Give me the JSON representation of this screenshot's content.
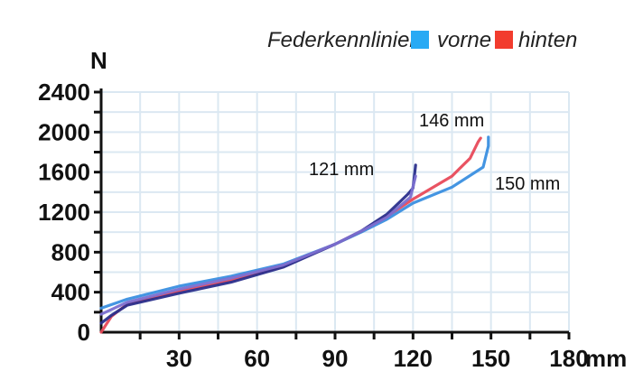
{
  "chart_data": {
    "type": "line",
    "legend": {
      "title": "Federkennlinien:",
      "placement": "top-right",
      "entries": [
        {
          "label": "vorne",
          "color": "#29aaf4"
        },
        {
          "label": "hinten",
          "color": "#f23c2e"
        }
      ]
    },
    "xlabel": "mm",
    "ylabel": "N",
    "xlim": [
      0,
      180
    ],
    "ylim": [
      0,
      2400
    ],
    "x_ticks": [
      30,
      60,
      90,
      120,
      150,
      180
    ],
    "y_ticks": [
      0,
      400,
      800,
      1200,
      1600,
      2000,
      2400
    ],
    "grid": true,
    "annotations": [
      "121 mm",
      "146 mm",
      "150 mm"
    ],
    "series": [
      {
        "color": "#3a8fe0",
        "points": [
          [
            0,
            240
          ],
          [
            10,
            330
          ],
          [
            30,
            460
          ],
          [
            50,
            560
          ],
          [
            70,
            680
          ],
          [
            90,
            880
          ],
          [
            100,
            1000
          ],
          [
            110,
            1130
          ],
          [
            120,
            1290
          ],
          [
            135,
            1450
          ],
          [
            147,
            1650
          ],
          [
            149,
            1860
          ],
          [
            149,
            1950
          ]
        ]
      },
      {
        "color": "#e84a5a",
        "points": [
          [
            0,
            0
          ],
          [
            4,
            160
          ],
          [
            10,
            280
          ],
          [
            30,
            410
          ],
          [
            50,
            520
          ],
          [
            70,
            660
          ],
          [
            90,
            880
          ],
          [
            100,
            1010
          ],
          [
            110,
            1160
          ],
          [
            120,
            1330
          ],
          [
            135,
            1560
          ],
          [
            142,
            1740
          ],
          [
            145,
            1900
          ],
          [
            146,
            1940
          ]
        ]
      },
      {
        "color": "#2a2f8c",
        "points": [
          [
            0,
            90
          ],
          [
            4,
            170
          ],
          [
            10,
            270
          ],
          [
            30,
            390
          ],
          [
            50,
            500
          ],
          [
            70,
            650
          ],
          [
            90,
            880
          ],
          [
            100,
            1010
          ],
          [
            110,
            1180
          ],
          [
            118,
            1380
          ],
          [
            120,
            1440
          ],
          [
            121,
            1670
          ]
        ]
      },
      {
        "color": "#7b6fd0",
        "points": [
          [
            0,
            180
          ],
          [
            10,
            300
          ],
          [
            30,
            430
          ],
          [
            50,
            540
          ],
          [
            70,
            670
          ],
          [
            90,
            880
          ],
          [
            100,
            1010
          ],
          [
            110,
            1150
          ],
          [
            119,
            1350
          ],
          [
            121,
            1560
          ]
        ]
      }
    ]
  }
}
